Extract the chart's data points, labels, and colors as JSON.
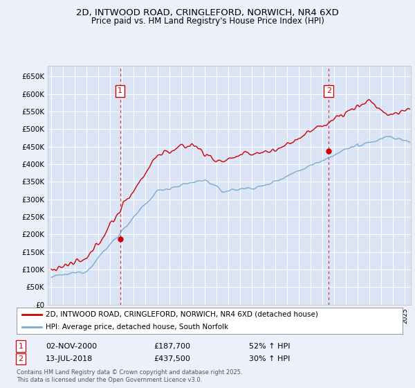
{
  "title1": "2D, INTWOOD ROAD, CRINGLEFORD, NORWICH, NR4 6XD",
  "title2": "Price paid vs. HM Land Registry's House Price Index (HPI)",
  "legend1": "2D, INTWOOD ROAD, CRINGLEFORD, NORWICH, NR4 6XD (detached house)",
  "legend2": "HPI: Average price, detached house, South Norfolk",
  "annotation1_date": "02-NOV-2000",
  "annotation1_price": "£187,700",
  "annotation1_hpi": "52% ↑ HPI",
  "annotation2_date": "13-JUL-2018",
  "annotation2_price": "£437,500",
  "annotation2_hpi": "30% ↑ HPI",
  "footnote": "Contains HM Land Registry data © Crown copyright and database right 2025.\nThis data is licensed under the Open Government Licence v3.0.",
  "background_color": "#EBF0FA",
  "plot_bg_color": "#DAE4F5",
  "grid_color": "#FFFFFF",
  "red_color": "#CC0000",
  "blue_color": "#7AAAD0",
  "ylim": [
    0,
    680000
  ],
  "yticks": [
    0,
    50000,
    100000,
    150000,
    200000,
    250000,
    300000,
    350000,
    400000,
    450000,
    500000,
    550000,
    600000,
    650000
  ],
  "ytick_labels": [
    "£0",
    "£50K",
    "£100K",
    "£150K",
    "£200K",
    "£250K",
    "£300K",
    "£350K",
    "£400K",
    "£450K",
    "£500K",
    "£550K",
    "£600K",
    "£650K"
  ],
  "xlim_start": 1994.7,
  "xlim_end": 2025.5,
  "transaction1_x": 2000.84,
  "transaction1_y": 187700,
  "transaction2_x": 2018.54,
  "transaction2_y": 437500
}
